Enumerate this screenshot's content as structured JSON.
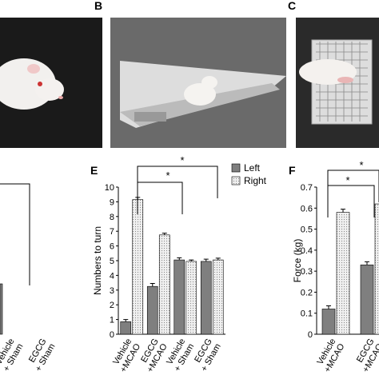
{
  "panel_labels": [
    "B",
    "C",
    "E",
    "F"
  ],
  "chart_data": [
    {
      "type": "bar",
      "categories": [
        "Vehicle\n+ Sham",
        "EGCG\n+ Sham"
      ]
    },
    {
      "type": "bar",
      "ylabel": "Numbers to turn",
      "categories": [
        "Vehicle\n+MCAO",
        "EGCG\n+MCAO",
        "Vehicle\n+ Sham",
        "EGCG\n+ Sham"
      ],
      "series": [
        {
          "name": "Left",
          "color": "#7f7f7f",
          "values": [
            0.85,
            3.25,
            5.05,
            4.95
          ],
          "errors": [
            0.15,
            0.2,
            0.15,
            0.15
          ]
        },
        {
          "name": "Right",
          "color": "#e8e8e8",
          "values": [
            9.15,
            6.75,
            4.95,
            5.05
          ],
          "errors": [
            0.15,
            0.12,
            0.1,
            0.12
          ]
        }
      ],
      "ylim": [
        0,
        10
      ],
      "yticks": [
        0,
        1,
        2,
        3,
        4,
        5,
        6,
        7,
        8,
        9,
        10
      ],
      "annotations": [
        "*",
        "*"
      ]
    },
    {
      "type": "bar",
      "ylabel": "Force (kg)",
      "categories": [
        "Vehicle\n+MCAO",
        "EGCG\n+MCAO"
      ],
      "series": [
        {
          "name": "Left",
          "color": "#7f7f7f",
          "values": [
            0.12,
            0.33
          ],
          "errors": [
            0.015,
            0.015
          ]
        },
        {
          "name": "Right",
          "color": "#e8e8e8",
          "values": [
            0.58,
            0.62
          ],
          "errors": [
            0.015,
            0.015
          ]
        }
      ],
      "ylim": [
        0,
        0.7
      ],
      "yticks": [
        0,
        0.1,
        0.2,
        0.3,
        0.4,
        0.5,
        0.6,
        0.7
      ],
      "annotations": [
        "*",
        "*"
      ]
    }
  ]
}
